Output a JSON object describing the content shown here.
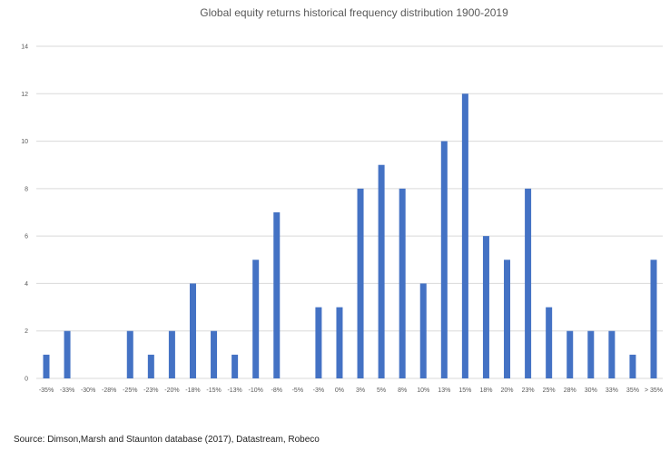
{
  "chart_data": {
    "type": "bar",
    "title": "Global equity returns historical frequency distribution 1900-2019",
    "xlabel": "",
    "ylabel": "",
    "ylim": [
      0,
      14
    ],
    "yticks": [
      0,
      2,
      4,
      6,
      8,
      10,
      12,
      14
    ],
    "grid": true,
    "categories": [
      "-35%",
      "-33%",
      "-30%",
      "-28%",
      "-25%",
      "-23%",
      "-20%",
      "-18%",
      "-15%",
      "-13%",
      "-10%",
      "-8%",
      "-5%",
      "-3%",
      "0%",
      "3%",
      "5%",
      "8%",
      "10%",
      "13%",
      "15%",
      "18%",
      "20%",
      "23%",
      "25%",
      "28%",
      "30%",
      "33%",
      "35%",
      "> 35%"
    ],
    "values": [
      1,
      2,
      0,
      0,
      2,
      1,
      2,
      4,
      2,
      1,
      5,
      7,
      0,
      3,
      3,
      8,
      9,
      8,
      4,
      10,
      12,
      6,
      5,
      8,
      3,
      2,
      2,
      2,
      1,
      5
    ],
    "bar_color": "#4472C4",
    "grid_color": "#D9D9D9"
  },
  "source": "Source: Dimson,Marsh and Staunton database (2017), Datastream, Robeco"
}
